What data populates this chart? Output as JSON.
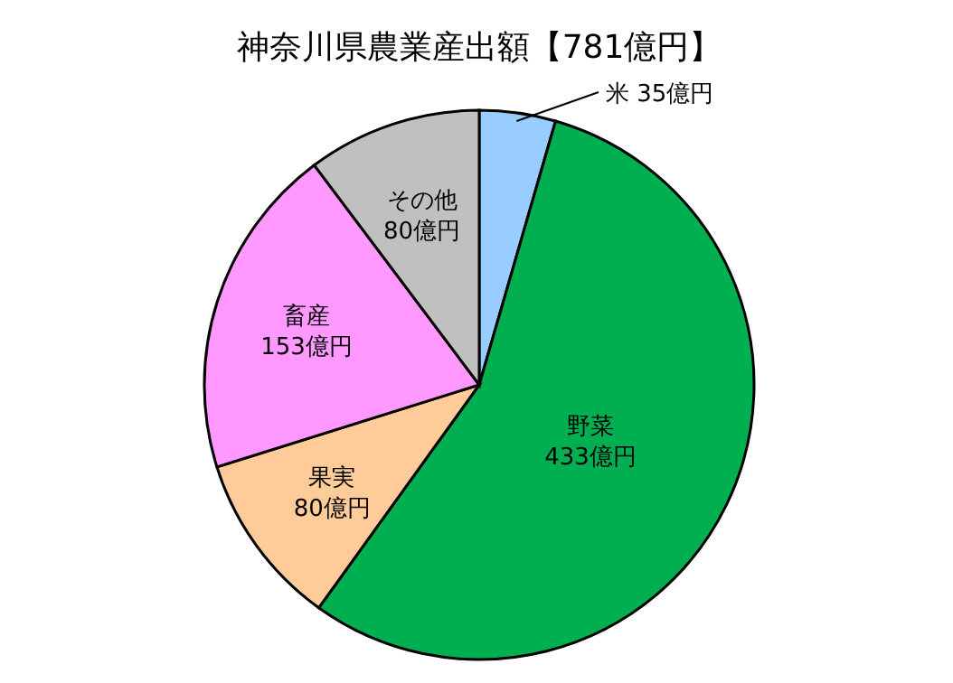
{
  "chart_data": {
    "type": "pie",
    "title": "神奈川県農業産出額【781億円】",
    "categories": [
      "米",
      "野菜",
      "果実",
      "畜産",
      "その他"
    ],
    "values": [
      35,
      433,
      80,
      153,
      80
    ],
    "value_labels": [
      "35億円",
      "433億円",
      "80億円",
      "153億円",
      "80億円"
    ],
    "colors": [
      "#99ccff",
      "#00b050",
      "#ffcc99",
      "#ff99ff",
      "#c0c0c0"
    ]
  }
}
